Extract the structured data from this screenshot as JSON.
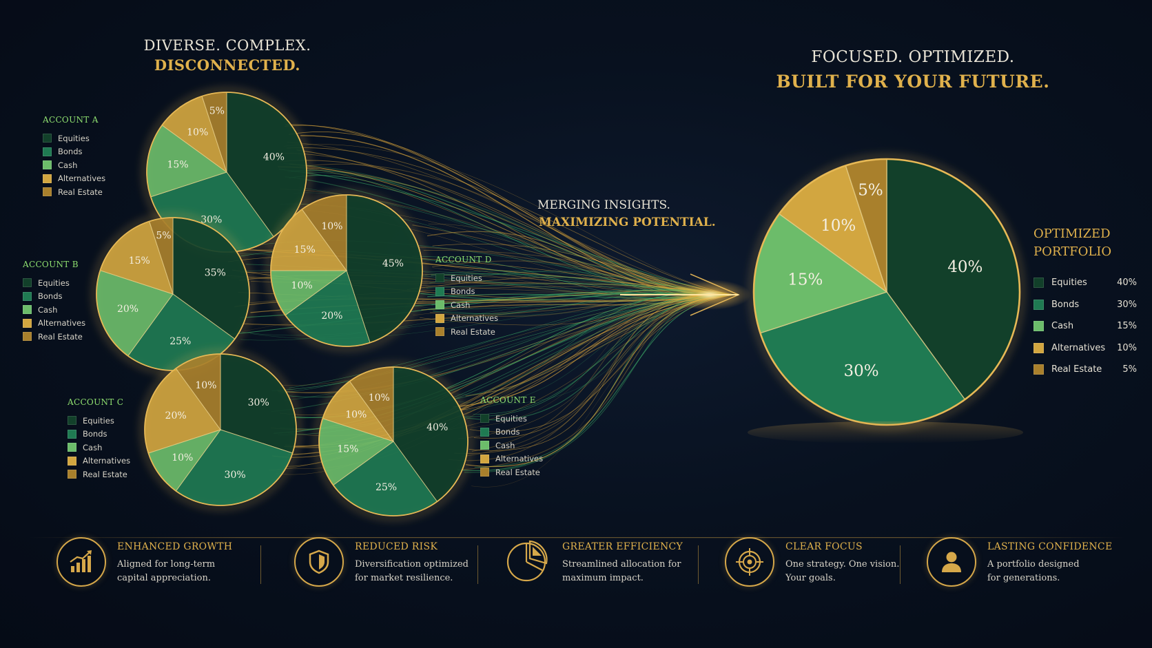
{
  "left_headline": {
    "line1": "DIVERSE. COMPLEX.",
    "line2": "DISCONNECTED."
  },
  "right_headline": {
    "line1": "FOCUSED. OPTIMIZED.",
    "line2": "BUILT FOR YOUR FUTURE."
  },
  "merge_headline": {
    "line1": "MERGING INSIGHTS.",
    "line2": "MAXIMIZING POTENTIAL."
  },
  "colors": {
    "Equities": "#12402a",
    "Bonds": "#1f7a52",
    "Cash": "#6cbc6a",
    "Alternatives": "#d2a640",
    "Real Estate": "#a9802c",
    "gold": "#e0b14c",
    "background": "#060d1a"
  },
  "chart_data": [
    {
      "type": "pie",
      "title": "ACCOUNT A",
      "categories": [
        "Equities",
        "Bonds",
        "Cash",
        "Alternatives",
        "Real Estate"
      ],
      "values": [
        40,
        30,
        15,
        10,
        5
      ],
      "value_labels": [
        "40%",
        "30%",
        "15%",
        "10%",
        "5%"
      ]
    },
    {
      "type": "pie",
      "title": "ACCOUNT B",
      "categories": [
        "Equities",
        "Bonds",
        "Cash",
        "Alternatives",
        "Real Estate"
      ],
      "values": [
        35,
        25,
        20,
        15,
        5
      ],
      "value_labels": [
        "35%",
        "25%",
        "20%",
        "15%",
        "5%"
      ]
    },
    {
      "type": "pie",
      "title": "ACCOUNT C",
      "categories": [
        "Equities",
        "Bonds",
        "Cash",
        "Alternatives",
        "Real Estate"
      ],
      "values": [
        30,
        30,
        10,
        20,
        10
      ],
      "value_labels": [
        "30%",
        "30%",
        "10%",
        "20%",
        "10%"
      ]
    },
    {
      "type": "pie",
      "title": "ACCOUNT D",
      "categories": [
        "Equities",
        "Bonds",
        "Cash",
        "Alternatives",
        "Real Estate"
      ],
      "values": [
        45,
        20,
        10,
        15,
        10
      ],
      "value_labels": [
        "45%",
        "20%",
        "10%",
        "15%",
        "10%"
      ]
    },
    {
      "type": "pie",
      "title": "ACCOUNT E",
      "categories": [
        "Equities",
        "Bonds",
        "Cash",
        "Alternatives",
        "Real Estate"
      ],
      "values": [
        40,
        25,
        15,
        10,
        10
      ],
      "value_labels": [
        "40%",
        "25%",
        "15%",
        "10%",
        "10%"
      ]
    },
    {
      "type": "pie",
      "title": "OPTIMIZED PORTFOLIO",
      "categories": [
        "Equities",
        "Bonds",
        "Cash",
        "Alternatives",
        "Real Estate"
      ],
      "values": [
        40,
        30,
        15,
        10,
        5
      ],
      "value_labels": [
        "40%",
        "30%",
        "15%",
        "10%",
        "5%"
      ]
    }
  ],
  "features": [
    {
      "title": "ENHANCED GROWTH",
      "line1": "Aligned for long-term",
      "line2": "capital appreciation.",
      "icon": "growth-chart-icon"
    },
    {
      "title": "REDUCED RISK",
      "line1": "Diversification optimized",
      "line2": "for market resilience.",
      "icon": "shield-icon"
    },
    {
      "title": "GREATER EFFICIENCY",
      "line1": "Streamlined allocation for",
      "line2": "maximum impact.",
      "icon": "pie-chart-icon"
    },
    {
      "title": "CLEAR FOCUS",
      "line1": "One strategy. One vision.",
      "line2": "Your goals.",
      "icon": "target-icon"
    },
    {
      "title": "LASTING CONFIDENCE",
      "line1": "A portfolio designed",
      "line2": "for generations.",
      "icon": "person-icon"
    }
  ]
}
